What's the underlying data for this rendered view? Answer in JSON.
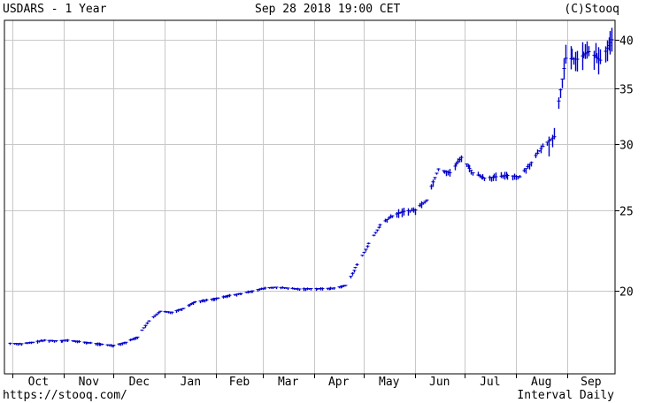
{
  "header": {
    "left": "USDARS - 1 Year",
    "center": "Sep 28 2018 19:00 CET",
    "right": "(C)Stooq"
  },
  "footer": {
    "left": "https://stooq.com/",
    "right": "Interval Daily"
  },
  "colors": {
    "series": "#0000cc",
    "grid": "#c8c8c8",
    "frame": "#000000",
    "background": "#ffffff"
  },
  "chart_data": {
    "type": "candlestick",
    "title": "USDARS - 1 Year",
    "interval": "Daily",
    "y_scale": "log",
    "ylim": [
      15.9,
      42.2
    ],
    "y_ticks": [
      20,
      25,
      30,
      35,
      40
    ],
    "x_ticks": [
      "Oct",
      "Nov",
      "Dec",
      "Jan",
      "Feb",
      "Mar",
      "Apr",
      "May",
      "Jun",
      "Jul",
      "Aug",
      "Sep"
    ],
    "grid": true,
    "series": [
      {
        "points": [
          [
            "2017-09-29",
            17.3
          ],
          [
            "2017-10-06",
            17.28
          ],
          [
            "2017-10-13",
            17.35
          ],
          [
            "2017-10-20",
            17.45
          ],
          [
            "2017-10-27",
            17.42
          ],
          [
            "2017-11-03",
            17.45
          ],
          [
            "2017-11-10",
            17.38
          ],
          [
            "2017-11-17",
            17.32
          ],
          [
            "2017-11-24",
            17.25
          ],
          [
            "2017-12-01",
            17.2
          ],
          [
            "2017-12-08",
            17.35
          ],
          [
            "2017-12-15",
            17.6
          ],
          [
            "2017-12-22",
            18.4
          ],
          [
            "2017-12-29",
            18.9
          ],
          [
            "2018-01-05",
            18.85
          ],
          [
            "2018-01-12",
            19.05
          ],
          [
            "2018-01-19",
            19.4
          ],
          [
            "2018-01-26",
            19.5
          ],
          [
            "2018-02-02",
            19.6
          ],
          [
            "2018-02-09",
            19.75
          ],
          [
            "2018-02-16",
            19.85
          ],
          [
            "2018-02-23",
            20.0
          ],
          [
            "2018-03-02",
            20.15
          ],
          [
            "2018-03-09",
            20.2
          ],
          [
            "2018-03-16",
            20.15
          ],
          [
            "2018-03-23",
            20.1
          ],
          [
            "2018-03-30",
            20.12
          ],
          [
            "2018-04-06",
            20.12
          ],
          [
            "2018-04-13",
            20.15
          ],
          [
            "2018-04-20",
            20.3
          ],
          [
            "2018-04-27",
            21.5
          ],
          [
            "2018-05-04",
            22.8
          ],
          [
            "2018-05-11",
            24.0
          ],
          [
            "2018-05-18",
            24.6
          ],
          [
            "2018-05-25",
            24.9
          ],
          [
            "2018-06-01",
            25.0
          ],
          [
            "2018-06-08",
            25.7
          ],
          [
            "2018-06-15",
            28.0
          ],
          [
            "2018-06-22",
            27.7
          ],
          [
            "2018-06-29",
            28.9
          ],
          [
            "2018-07-06",
            27.7
          ],
          [
            "2018-07-13",
            27.3
          ],
          [
            "2018-07-20",
            27.4
          ],
          [
            "2018-07-27",
            27.5
          ],
          [
            "2018-08-03",
            27.4
          ],
          [
            "2018-08-10",
            28.5
          ],
          [
            "2018-08-17",
            29.8
          ],
          [
            "2018-08-24",
            30.6
          ],
          [
            "2018-08-31",
            38.0
          ],
          [
            "2018-09-07",
            37.9
          ],
          [
            "2018-09-14",
            38.7
          ],
          [
            "2018-09-21",
            37.8
          ],
          [
            "2018-09-28",
            40.0
          ]
        ]
      }
    ]
  }
}
